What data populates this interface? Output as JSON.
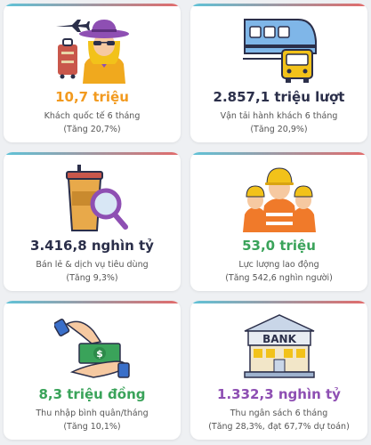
{
  "cards": [
    {
      "value": "10,7 triệu",
      "label": "Khách quốc tế 6 tháng",
      "sub": "(Tăng 20,7%)",
      "color": "#f29a1f",
      "icon": "tourist-icon"
    },
    {
      "value": "2.857,1 triệu lượt",
      "label": "Vận tải hành khách 6 tháng",
      "sub": "(Tăng 20,9%)",
      "color": "#2b2f4a",
      "icon": "transport-icon"
    },
    {
      "value": "3.416,8 nghìn tỷ",
      "label": "Bán lẻ & dịch vụ tiêu dùng",
      "sub": "(Tăng 9,3%)",
      "color": "#2b2f4a",
      "icon": "retail-search-icon"
    },
    {
      "value": "53,0 triệu",
      "label": "Lực lượng lao động",
      "sub": "(Tăng 542,6 nghìn người)",
      "color": "#3aa35a",
      "icon": "workers-icon"
    },
    {
      "value": "8,3 triệu đồng",
      "label": "Thu nhập bình quân/tháng",
      "sub": "(Tăng 10,1%)",
      "color": "#3aa35a",
      "icon": "money-hand-icon"
    },
    {
      "value": "1.332,3 nghìn tỷ",
      "label": "Thu ngân sách 6 tháng",
      "sub": "(Tăng 28,3%, đạt 67,7% dự toán)",
      "color": "#8e4fb3",
      "icon": "bank-icon"
    }
  ],
  "bank_sign": "BANK"
}
